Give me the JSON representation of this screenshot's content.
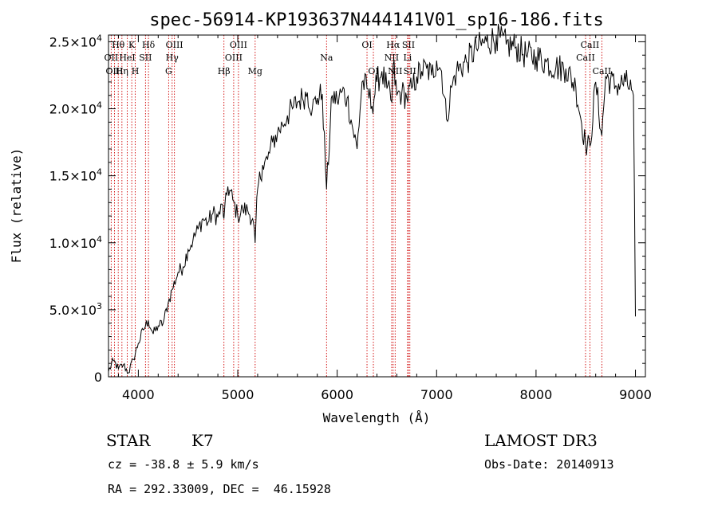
{
  "chart_data": {
    "type": "line",
    "title": "spec-56914-KP193637N444141V01_sp16-186.fits",
    "xlabel": "Wavelength (Å)",
    "ylabel": "Flux (relative)",
    "xlim": [
      3700,
      9100
    ],
    "ylim": [
      0,
      25500
    ],
    "xticks": [
      4000,
      5000,
      6000,
      7000,
      8000,
      9000
    ],
    "xtick_labels": [
      "4000",
      "5000",
      "6000",
      "7000",
      "8000",
      "9000"
    ],
    "yticks": [
      0,
      5000,
      10000,
      15000,
      20000,
      25000
    ],
    "ytick_labels": [
      {
        "mantissa": "0",
        "exponent": ""
      },
      {
        "mantissa": "5.0×10",
        "exponent": "3"
      },
      {
        "mantissa": "1.0×10",
        "exponent": "4"
      },
      {
        "mantissa": "1.5×10",
        "exponent": "4"
      },
      {
        "mantissa": "2.0×10",
        "exponent": "4"
      },
      {
        "mantissa": "2.5×10",
        "exponent": "4"
      }
    ],
    "series": [
      {
        "name": "flux",
        "x": [
          3700,
          3750,
          3800,
          3850,
          3900,
          3950,
          4000,
          4050,
          4100,
          4150,
          4200,
          4250,
          4300,
          4340,
          4400,
          4450,
          4500,
          4550,
          4600,
          4650,
          4700,
          4750,
          4800,
          4850,
          4861,
          4900,
          4950,
          5000,
          5050,
          5100,
          5150,
          5175,
          5200,
          5250,
          5300,
          5350,
          5400,
          5450,
          5500,
          5550,
          5600,
          5650,
          5700,
          5750,
          5800,
          5850,
          5893,
          5950,
          6000,
          6050,
          6100,
          6150,
          6200,
          6250,
          6300,
          6350,
          6400,
          6450,
          6500,
          6550,
          6563,
          6600,
          6650,
          6700,
          6750,
          6800,
          6850,
          6900,
          6950,
          7000,
          7050,
          7100,
          7150,
          7200,
          7300,
          7400,
          7500,
          7600,
          7700,
          7800,
          7900,
          8000,
          8100,
          8200,
          8300,
          8400,
          8498,
          8542,
          8600,
          8662,
          8700,
          8800,
          8900,
          8960,
          8980,
          9000
        ],
        "y": [
          400,
          1200,
          600,
          900,
          300,
          1300,
          2500,
          3500,
          4200,
          3200,
          3800,
          4000,
          5500,
          6500,
          7800,
          8200,
          9500,
          10200,
          11000,
          11800,
          11500,
          12200,
          11900,
          12800,
          11800,
          14200,
          13200,
          12000,
          12500,
          12400,
          11800,
          10000,
          14000,
          15800,
          16200,
          17500,
          18200,
          18800,
          19500,
          20000,
          20500,
          20800,
          21200,
          20000,
          20800,
          21100,
          14000,
          21000,
          20600,
          21300,
          20800,
          18800,
          17000,
          22000,
          21500,
          20200,
          22000,
          22800,
          21500,
          20500,
          23300,
          21000,
          21200,
          20800,
          21500,
          22400,
          22800,
          23000,
          22500,
          23600,
          22800,
          19200,
          21600,
          22800,
          23500,
          24500,
          25000,
          25300,
          24800,
          24600,
          24000,
          23900,
          23500,
          23100,
          23000,
          21600,
          17300,
          17200,
          22000,
          18000,
          22400,
          21700,
          22000,
          21400,
          21000,
          4500
        ]
      }
    ],
    "spectral_lines": [
      {
        "name": "Hθ",
        "x": 3798,
        "row": 1
      },
      {
        "name": "OII",
        "x": 3727,
        "row": 2
      },
      {
        "name": "OIII",
        "x": 3760,
        "row": 3
      },
      {
        "name": "Hη",
        "x": 3835,
        "row": 3
      },
      {
        "name": "HeI",
        "x": 3889,
        "row": 2
      },
      {
        "name": "K",
        "x": 3934,
        "row": 1
      },
      {
        "name": "H",
        "x": 3969,
        "row": 3
      },
      {
        "name": "SII",
        "x": 4072,
        "row": 2
      },
      {
        "name": "Hδ",
        "x": 4102,
        "row": 1
      },
      {
        "name": "OIII",
        "x": 4363,
        "row": 1
      },
      {
        "name": "Hγ",
        "x": 4340,
        "row": 2
      },
      {
        "name": "G",
        "x": 4305,
        "row": 3
      },
      {
        "name": "Hβ",
        "x": 4861,
        "row": 3
      },
      {
        "name": "OIII",
        "x": 4959,
        "row": 2
      },
      {
        "name": "OIII",
        "x": 5007,
        "row": 1
      },
      {
        "name": "Mg",
        "x": 5175,
        "row": 3
      },
      {
        "name": "Na",
        "x": 5893,
        "row": 2
      },
      {
        "name": "OI",
        "x": 6300,
        "row": 1
      },
      {
        "name": "OI",
        "x": 6364,
        "row": 3
      },
      {
        "name": "NII",
        "x": 6548,
        "row": 2
      },
      {
        "name": "Hα",
        "x": 6563,
        "row": 1
      },
      {
        "name": "NII",
        "x": 6583,
        "row": 3
      },
      {
        "name": "Li",
        "x": 6708,
        "row": 2
      },
      {
        "name": "SII",
        "x": 6717,
        "row": 1
      },
      {
        "name": "SII",
        "x": 6731,
        "row": 3
      },
      {
        "name": "CaII",
        "x": 8498,
        "row": 2
      },
      {
        "name": "CaII",
        "x": 8542,
        "row": 1
      },
      {
        "name": "CaII",
        "x": 8662,
        "row": 3
      }
    ]
  },
  "info": {
    "class": "STAR",
    "subclass": "K7",
    "survey": "LAMOST DR3",
    "cz": "cz = -38.8 ± 5.9 km/s",
    "obs_date": "Obs-Date: 20140913",
    "radec": "RA = 292.33009, DEC =  46.15928"
  }
}
